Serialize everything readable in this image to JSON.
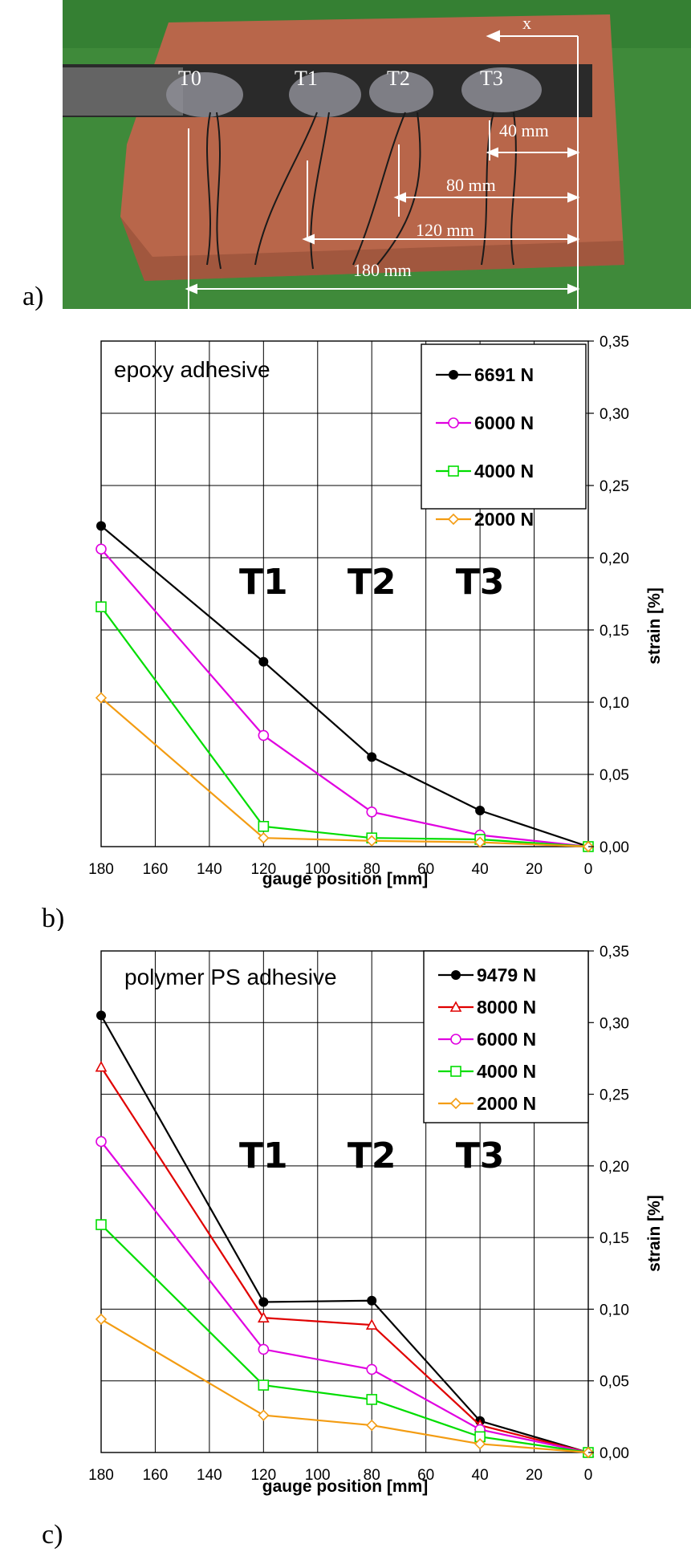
{
  "photo": {
    "panel_label": "a)",
    "gauge_labels": [
      "T0",
      "T1",
      "T2",
      "T3"
    ],
    "axis_label": "x",
    "dimensions": [
      "40 mm",
      "80 mm",
      "120 mm",
      "180 mm"
    ],
    "colors": {
      "background": "#3f8a3a",
      "brick": "#b8664a",
      "strip": "#2a2a2a"
    }
  },
  "chart_data": [
    {
      "type": "line",
      "panel_label": "b)",
      "title": "epoxy adhesive",
      "xlabel": "gauge position [mm]",
      "ylabel": "strain [%]",
      "xlim": [
        180,
        0
      ],
      "ylim": [
        0,
        0.35
      ],
      "x_ticks": [
        "180",
        "160",
        "140",
        "120",
        "100",
        "80",
        "60",
        "40",
        "20",
        "0"
      ],
      "y_ticks": [
        "0,00",
        "0,05",
        "0,10",
        "0,15",
        "0,20",
        "0,25",
        "0,30",
        "0,35"
      ],
      "grid": true,
      "legend_position": "top-right",
      "annotations": [
        {
          "text": "T1",
          "x": 120
        },
        {
          "text": "T2",
          "x": 80
        },
        {
          "text": "T3",
          "x": 40
        }
      ],
      "x": [
        180,
        120,
        80,
        40,
        0
      ],
      "series": [
        {
          "name": "6691 N",
          "color": "#000000",
          "marker": "dot",
          "values": [
            0.222,
            0.128,
            0.062,
            0.025,
            0.0
          ]
        },
        {
          "name": "6000 N",
          "color": "#e000e0",
          "marker": "circle",
          "values": [
            0.206,
            0.077,
            0.024,
            0.008,
            0.0
          ]
        },
        {
          "name": "4000 N",
          "color": "#00dd00",
          "marker": "square",
          "values": [
            0.166,
            0.014,
            0.006,
            0.005,
            0.0
          ]
        },
        {
          "name": "2000 N",
          "color": "#f39c12",
          "marker": "diamond",
          "values": [
            0.103,
            0.006,
            0.004,
            0.003,
            0.0
          ]
        }
      ]
    },
    {
      "type": "line",
      "panel_label": "c)",
      "title": "polymer PS adhesive",
      "xlabel": "gauge position [mm]",
      "ylabel": "strain [%]",
      "xlim": [
        180,
        0
      ],
      "ylim": [
        0,
        0.35
      ],
      "x_ticks": [
        "180",
        "160",
        "140",
        "120",
        "100",
        "80",
        "60",
        "40",
        "20",
        "0"
      ],
      "y_ticks": [
        "0,00",
        "0,05",
        "0,10",
        "0,15",
        "0,20",
        "0,25",
        "0,30",
        "0,35"
      ],
      "grid": true,
      "legend_position": "top-right",
      "annotations": [
        {
          "text": "T1",
          "x": 120
        },
        {
          "text": "T2",
          "x": 80
        },
        {
          "text": "T3",
          "x": 40
        }
      ],
      "x": [
        180,
        120,
        80,
        40,
        0
      ],
      "series": [
        {
          "name": "9479 N",
          "color": "#000000",
          "marker": "dot",
          "values": [
            0.305,
            0.105,
            0.106,
            0.022,
            0.0
          ]
        },
        {
          "name": "8000 N",
          "color": "#e00000",
          "marker": "triangle",
          "values": [
            0.269,
            0.094,
            0.089,
            0.019,
            0.0
          ]
        },
        {
          "name": "6000 N",
          "color": "#e000e0",
          "marker": "circle",
          "values": [
            0.217,
            0.072,
            0.058,
            0.016,
            0.0
          ]
        },
        {
          "name": "4000 N",
          "color": "#00dd00",
          "marker": "square",
          "values": [
            0.159,
            0.047,
            0.037,
            0.011,
            0.0
          ]
        },
        {
          "name": "2000 N",
          "color": "#f39c12",
          "marker": "diamond",
          "values": [
            0.093,
            0.026,
            0.019,
            0.006,
            0.0
          ]
        }
      ]
    }
  ]
}
